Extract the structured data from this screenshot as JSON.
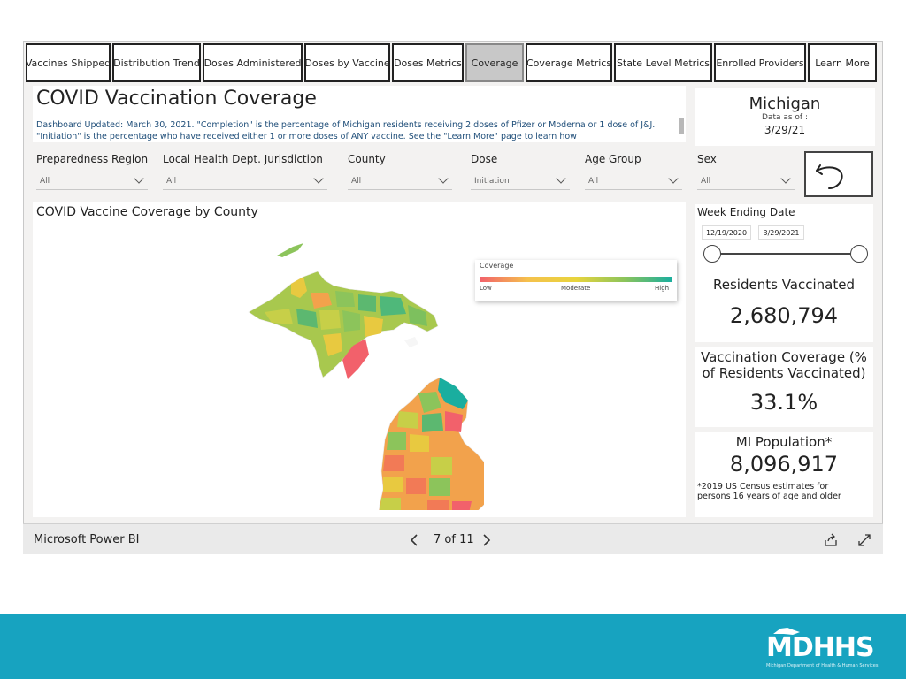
{
  "tabs": [
    "Vaccines Shipped",
    "Distribution Trend",
    "Doses Administered",
    "Doses by Vaccine",
    "Doses Metrics",
    "Coverage",
    "Coverage Metrics",
    "State Level Metrics",
    "Enrolled Providers",
    "Learn More"
  ],
  "active_tab": "Coverage",
  "header": {
    "title": "COVID Vaccination Coverage",
    "subtitle": "Dashboard Updated: March 30, 2021. \"Completion\" is the percentage of Michigan residents receiving 2 doses of Pfizer or Moderna or 1 dose of J&J. \"Initiation\" is the percentage who have received either 1 or more doses of ANY vaccine. See the \"Learn More\" page to learn how"
  },
  "state_card": {
    "name": "Michigan",
    "data_as_of_label": "Data as of :",
    "date": "3/29/21"
  },
  "filters": [
    {
      "label": "Preparedness Region",
      "value": "All"
    },
    {
      "label": "Local Health Dept. Jurisdiction",
      "value": "All"
    },
    {
      "label": "County",
      "value": "All"
    },
    {
      "label": "Dose",
      "value": "Initiation"
    },
    {
      "label": "Age Group",
      "value": "All"
    },
    {
      "label": "Sex",
      "value": "All"
    }
  ],
  "map": {
    "title": "COVID Vaccine Coverage by County",
    "legend": {
      "title": "Coverage",
      "low": "Low",
      "moderate": "Moderate",
      "high": "High"
    }
  },
  "week_slider": {
    "label": "Week Ending Date",
    "start": "12/19/2020",
    "end": "3/29/2021",
    "start_fraction": 0.0,
    "end_fraction": 1.0
  },
  "kpis": {
    "residents_vaccinated": {
      "label": "Residents Vaccinated",
      "value": "2,680,794"
    },
    "coverage": {
      "label_line1": "Vaccination Coverage (%",
      "label_line2": "of Residents Vaccinated)",
      "value": "33.1%"
    },
    "population": {
      "label": "MI Population*",
      "value": "8,096,917",
      "note_line1": "*2019 US Census estimates for",
      "note_line2": "persons 16 years of age and older"
    }
  },
  "footer": {
    "brand": "Microsoft Power BI",
    "page": "7 of 11"
  },
  "logo": {
    "text": "MDHHS",
    "sub": "Michigan Department of Health & Human Services"
  },
  "colors": {
    "low": "#f2616b",
    "moderate": "#f5c14d",
    "high": "#1aae9f",
    "band": "#17a3c0"
  }
}
